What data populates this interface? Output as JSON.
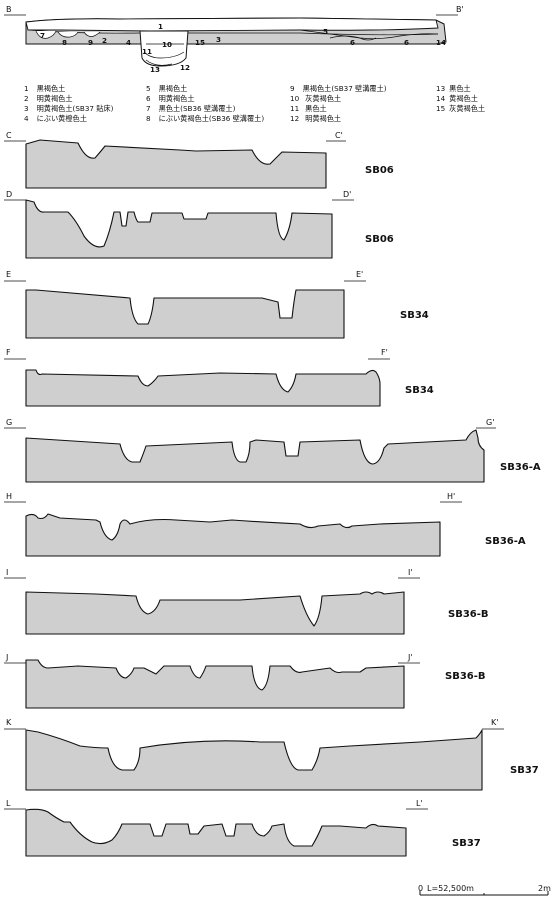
{
  "top_section": {
    "left_label": "B",
    "right_label": "B'",
    "layer_numbers": [
      "1",
      "2",
      "3",
      "4",
      "5",
      "6",
      "6",
      "7",
      "8",
      "9",
      "10",
      "11",
      "12",
      "13",
      "14",
      "15"
    ]
  },
  "legend": [
    {
      "num": "1",
      "text": "黒褐色土"
    },
    {
      "num": "2",
      "text": "明黄褐色土"
    },
    {
      "num": "3",
      "text": "明黄褐色土(SB37 貼床)"
    },
    {
      "num": "4",
      "text": "にぶい黄橙色土"
    },
    {
      "num": "5",
      "text": "黒褐色土"
    },
    {
      "num": "6",
      "text": "明黄褐色土"
    },
    {
      "num": "7",
      "text": "黒色土(SB36 壁溝覆土)"
    },
    {
      "num": "8",
      "text": "にぶい黄褐色土(SB36 壁溝覆土)"
    },
    {
      "num": "9",
      "text": "黒褐色土(SB37 壁溝覆土)"
    },
    {
      "num": "10",
      "text": "灰黄褐色土"
    },
    {
      "num": "11",
      "text": "黒色土"
    },
    {
      "num": "12",
      "text": "明黄褐色土"
    },
    {
      "num": "13",
      "text": "黒色土"
    },
    {
      "num": "14",
      "text": "黄褐色土"
    },
    {
      "num": "15",
      "text": "灰黄褐色土"
    }
  ],
  "sections": [
    {
      "left": "C",
      "right": "C'",
      "name": "SB06"
    },
    {
      "left": "D",
      "right": "D'",
      "name": "SB06"
    },
    {
      "left": "E",
      "right": "E'",
      "name": "SB34"
    },
    {
      "left": "F",
      "right": "F'",
      "name": "SB34"
    },
    {
      "left": "G",
      "right": "G'",
      "name": "SB36-A"
    },
    {
      "left": "H",
      "right": "H'",
      "name": "SB36-A"
    },
    {
      "left": "I",
      "right": "I'",
      "name": "SB36-B"
    },
    {
      "left": "J",
      "right": "J'",
      "name": "SB36-B"
    },
    {
      "left": "K",
      "right": "K'",
      "name": "SB37"
    },
    {
      "left": "L",
      "right": "L'",
      "name": "SB37"
    }
  ],
  "scale": {
    "zero": "0",
    "level": "L=52,500m",
    "end": "2m"
  },
  "colors": {
    "fill": "#cfcfcf",
    "line": "#111111"
  }
}
